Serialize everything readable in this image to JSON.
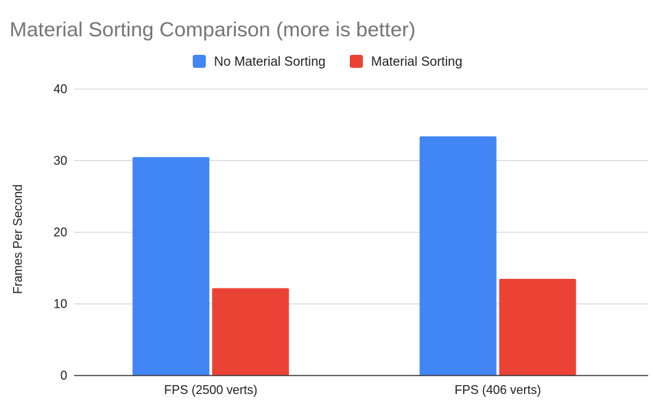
{
  "chart_data": {
    "type": "bar",
    "title": "Material Sorting Comparison (more is better)",
    "xlabel": "",
    "ylabel": "Frames Per Second",
    "categories": [
      "FPS (2500 verts)",
      "FPS (406 verts)"
    ],
    "series": [
      {
        "name": "No Material Sorting",
        "color": "#4285f4",
        "values": [
          30.5,
          33.4
        ]
      },
      {
        "name": "Material Sorting",
        "color": "#ea4335",
        "values": [
          12.2,
          13.5
        ]
      }
    ],
    "ylim": [
      0,
      40
    ],
    "yticks": [
      "0",
      "10",
      "20",
      "30",
      "40"
    ],
    "grid": true,
    "legend_position": "top-center"
  }
}
